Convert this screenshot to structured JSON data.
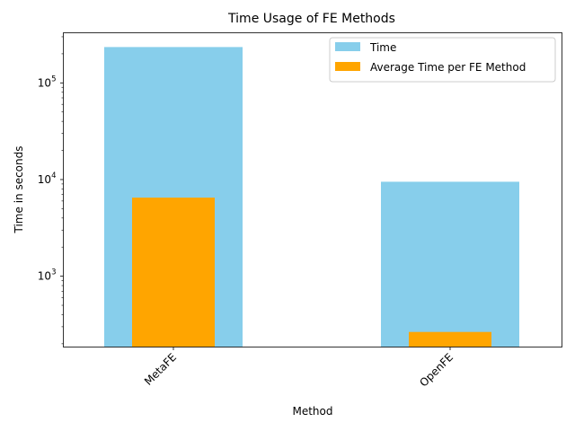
{
  "chart_data": {
    "type": "bar",
    "title": "Time Usage of FE Methods",
    "xlabel": "Method",
    "ylabel": "Time in seconds",
    "yscale": "log",
    "ylim": [
      185,
      330000
    ],
    "categories": [
      "MetaFE",
      "OpenFE"
    ],
    "series": [
      {
        "name": "Time",
        "values": [
          235000,
          9500
        ],
        "color": "#87CEEB"
      },
      {
        "name": "Average Time per FE Method",
        "values": [
          6500,
          265
        ],
        "color": "#FFA500"
      }
    ],
    "y_ticks": [
      {
        "value": 1000,
        "base": "10",
        "exp": "3"
      },
      {
        "value": 10000,
        "base": "10",
        "exp": "4"
      },
      {
        "value": 100000,
        "base": "10",
        "exp": "5"
      }
    ],
    "legend_position": "top-right",
    "grid": false
  }
}
